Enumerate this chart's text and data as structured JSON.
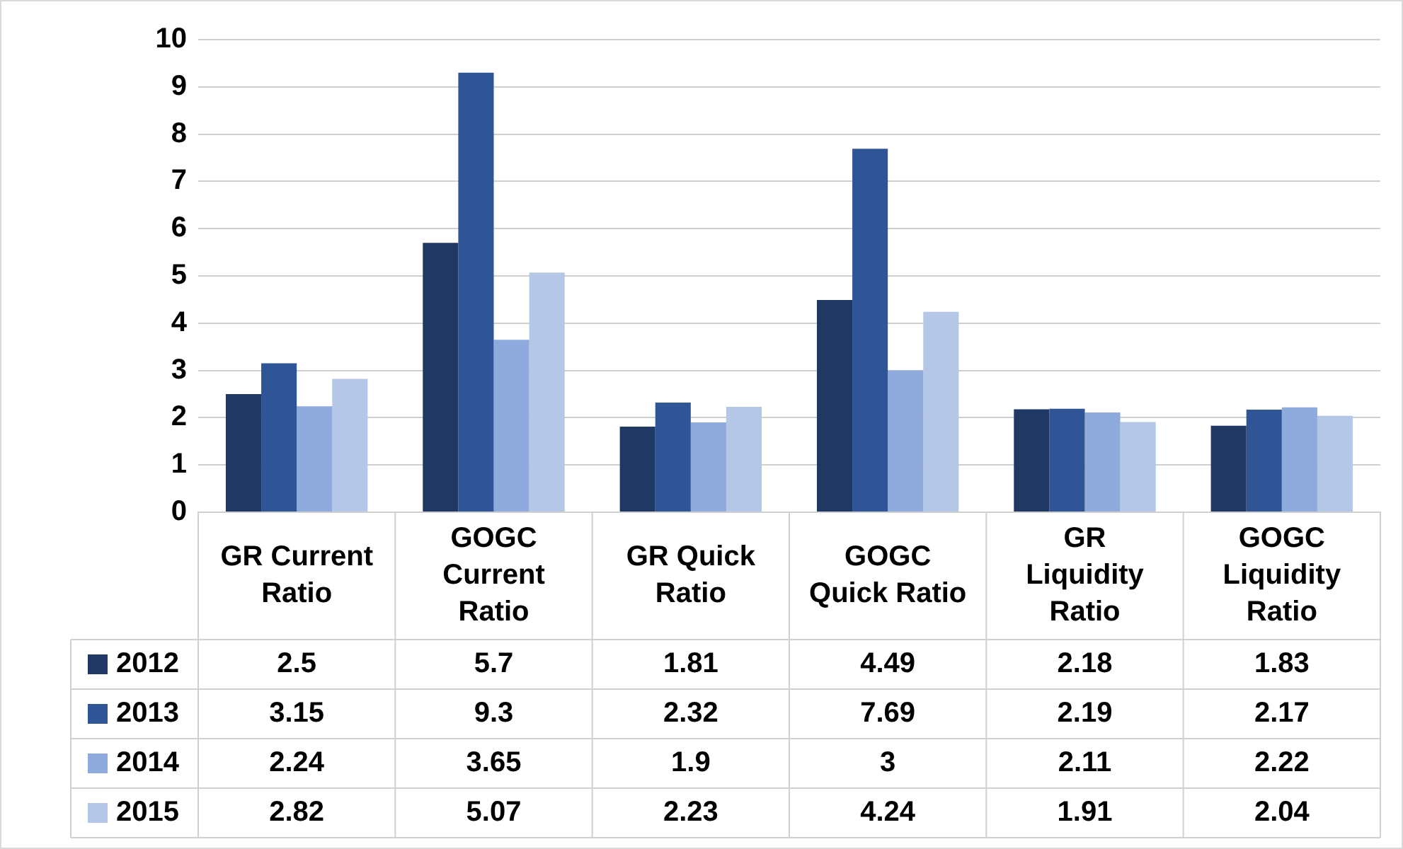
{
  "chart_data": {
    "type": "bar",
    "categories": [
      "GR Current Ratio",
      "GOGC Current Ratio",
      "GR Quick Ratio",
      "GOGC Quick Ratio",
      "GR Liquidity Ratio",
      "GOGC Liquidity Ratio"
    ],
    "series": [
      {
        "name": "2012",
        "color": "#203864",
        "values": [
          2.5,
          5.7,
          1.81,
          4.49,
          2.18,
          1.83
        ]
      },
      {
        "name": "2013",
        "color": "#2f5597",
        "values": [
          3.15,
          9.3,
          2.32,
          7.69,
          2.19,
          2.17
        ]
      },
      {
        "name": "2014",
        "color": "#8faadc",
        "values": [
          2.24,
          3.65,
          1.9,
          3,
          2.11,
          2.22
        ]
      },
      {
        "name": "2015",
        "color": "#b4c7e7",
        "values": [
          2.82,
          5.07,
          2.23,
          4.24,
          1.91,
          2.04
        ]
      }
    ],
    "ylim": [
      0,
      10
    ],
    "yticks": [
      0,
      1,
      2,
      3,
      4,
      5,
      6,
      7,
      8,
      9,
      10
    ],
    "grid": "y",
    "legend": "bottom",
    "data_labels": true
  }
}
